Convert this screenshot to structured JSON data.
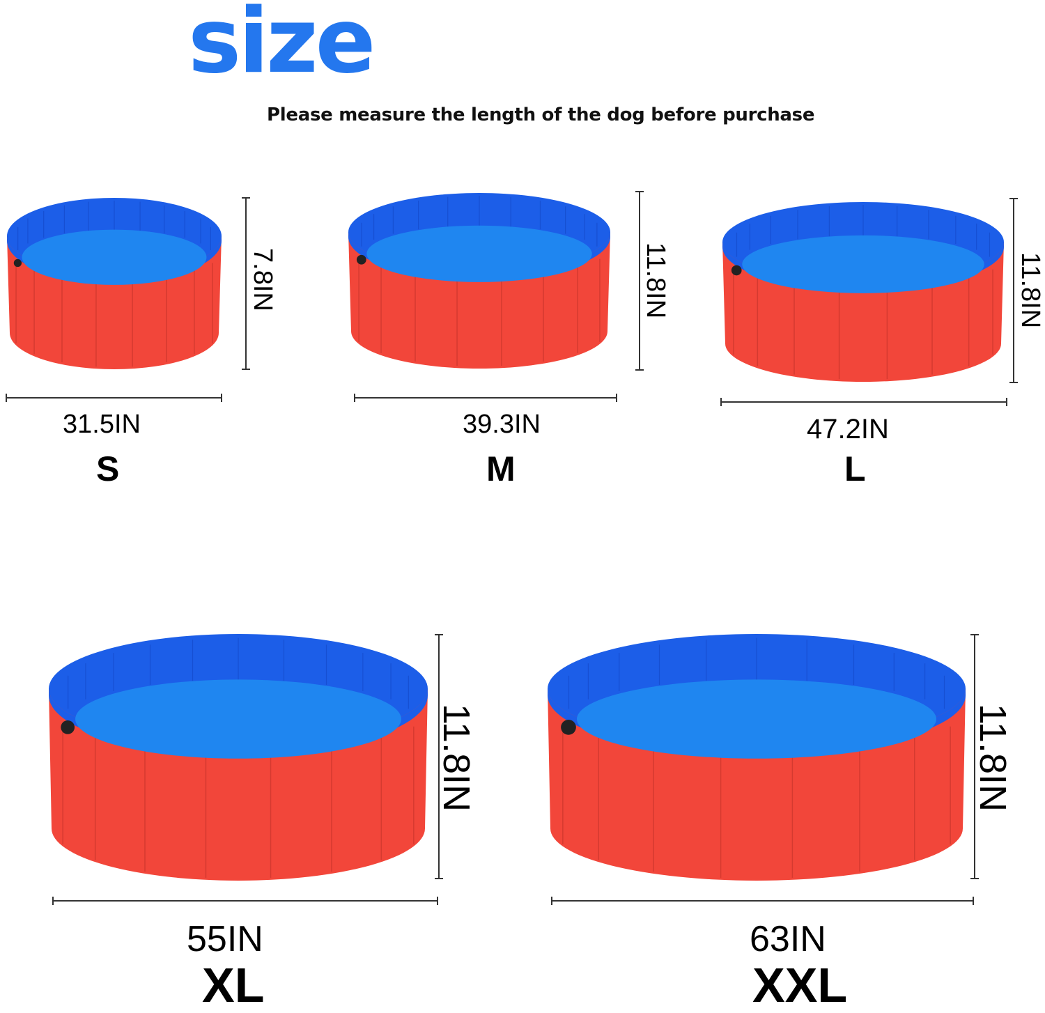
{
  "header": {
    "title": "size",
    "subtitle": "Please measure the length of the dog before purchase"
  },
  "colors": {
    "title_blue": "#2477ee",
    "pool_outer_red": "#f2463a",
    "pool_inner_blue": "#1c5ee8",
    "pool_floor_blue": "#1f86f0"
  },
  "sizes": [
    {
      "label": "S",
      "diameter": "31.5IN",
      "height": "7.8IN"
    },
    {
      "label": "M",
      "diameter": "39.3IN",
      "height": "11.8IN"
    },
    {
      "label": "L",
      "diameter": "47.2IN",
      "height": "11.8IN"
    },
    {
      "label": "XL",
      "diameter": "55IN",
      "height": "11.8IN"
    },
    {
      "label": "XXL",
      "diameter": "63IN",
      "height": "11.8IN"
    }
  ]
}
